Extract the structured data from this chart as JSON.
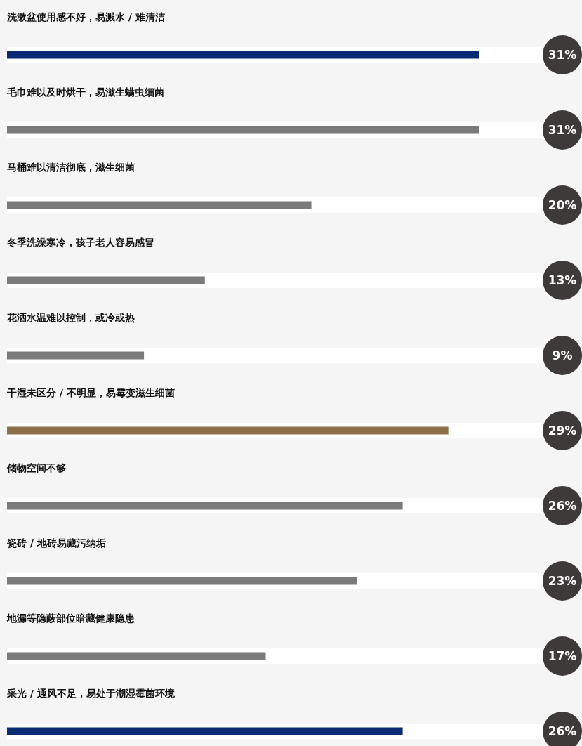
{
  "chart_data": {
    "type": "bar",
    "orientation": "horizontal",
    "categories": [
      "洗漱盆使用感不好，易溅水 / 难清洁",
      "毛巾难以及时烘干，易滋生螨虫细菌",
      "马桶难以清洁彻底，滋生细菌",
      "冬季洗澡寒冷，孩子老人容易感冒",
      "花洒水温难以控制，或冷或热",
      "干湿未区分 / 不明显，易霉变滋生细菌",
      "储物空间不够",
      "瓷砖 / 地砖易藏污纳垢",
      "地漏等隐蔽部位暗藏健康隐患",
      "采光 / 通风不足，易处于潮湿霉菌环境"
    ],
    "values": [
      31,
      31,
      20,
      13,
      9,
      29,
      26,
      23,
      17,
      26
    ],
    "colors": [
      "#0a2a73",
      "#7a7a7a",
      "#7a7a7a",
      "#7a7a7a",
      "#7a7a7a",
      "#8c7148",
      "#7a7a7a",
      "#7a7a7a",
      "#7a7a7a",
      "#0a2a73"
    ],
    "value_labels": [
      "31%",
      "31%",
      "20%",
      "13%",
      "9%",
      "29%",
      "26%",
      "23%",
      "17%",
      "26%"
    ]
  }
}
